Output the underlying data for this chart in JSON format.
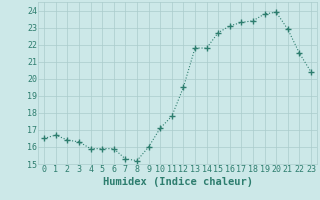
{
  "x": [
    0,
    1,
    2,
    3,
    4,
    5,
    6,
    7,
    8,
    9,
    10,
    11,
    12,
    13,
    14,
    15,
    16,
    17,
    18,
    19,
    20,
    21,
    22,
    23
  ],
  "y": [
    16.5,
    16.7,
    16.4,
    16.3,
    15.9,
    15.9,
    15.9,
    15.3,
    15.2,
    16.0,
    17.1,
    17.8,
    19.5,
    21.8,
    21.8,
    22.7,
    23.1,
    23.3,
    23.4,
    23.8,
    23.9,
    22.9,
    21.5,
    20.4
  ],
  "xlabel": "Humidex (Indice chaleur)",
  "ylabel": "",
  "ylim": [
    15,
    24.5
  ],
  "yticks": [
    15,
    16,
    17,
    18,
    19,
    20,
    21,
    22,
    23,
    24
  ],
  "xlim": [
    -0.5,
    23.5
  ],
  "xticks": [
    0,
    1,
    2,
    3,
    4,
    5,
    6,
    7,
    8,
    9,
    10,
    11,
    12,
    13,
    14,
    15,
    16,
    17,
    18,
    19,
    20,
    21,
    22,
    23
  ],
  "line_color": "#2d7d6e",
  "marker": "+",
  "marker_size": 4,
  "bg_color": "#cce8e8",
  "grid_color": "#aacccc",
  "tick_fontsize": 6,
  "xlabel_fontsize": 7.5
}
